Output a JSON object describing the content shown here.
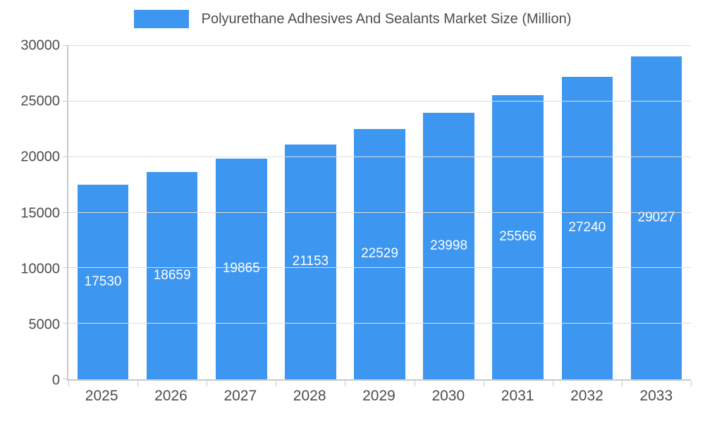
{
  "legend": {
    "title": "Polyurethane Adhesives And Sealants Market Size (Million)",
    "swatch_color": "#3D96F0"
  },
  "chart_data": {
    "type": "bar",
    "title": "Polyurethane Adhesives And Sealants Market Size (Million)",
    "categories": [
      "2025",
      "2026",
      "2027",
      "2028",
      "2029",
      "2030",
      "2031",
      "2032",
      "2033"
    ],
    "values": [
      17530,
      18659,
      19865,
      21153,
      22529,
      23998,
      25566,
      27240,
      29027
    ],
    "xlabel": "",
    "ylabel": "",
    "ylim": [
      0,
      30000
    ],
    "yticks": [
      0,
      5000,
      10000,
      15000,
      20000,
      25000,
      30000
    ],
    "grid": true,
    "legend_position": "top",
    "bar_color": "#3D96F0",
    "value_label_color": "#ffffff"
  }
}
